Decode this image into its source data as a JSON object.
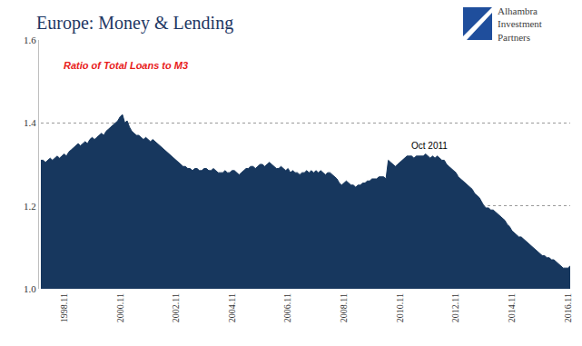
{
  "chart_data": {
    "type": "area",
    "title": "Europe: Money & Lending",
    "subtitle": "Ratio of Total Loans to M3",
    "annotations": [
      "Oct 2011"
    ],
    "logo": "Alhambra Investment Partners",
    "color": "#17375e",
    "grid": true,
    "ylim": [
      1.0,
      1.6
    ],
    "yticks": [
      {
        "value": 1.0,
        "label": "1.0"
      },
      1.2,
      1.4,
      1.6
    ],
    "categories": [
      null,
      null,
      null,
      null,
      null,
      null,
      null,
      null,
      null,
      null,
      "1998.11",
      null,
      null,
      null,
      null,
      null,
      null,
      null,
      null,
      null,
      null,
      null,
      null,
      null,
      null,
      null,
      null,
      null,
      null,
      null,
      null,
      null,
      null,
      null,
      "2000.11",
      null,
      null,
      null,
      null,
      null,
      null,
      null,
      null,
      null,
      null,
      null,
      null,
      null,
      null,
      null,
      null,
      null,
      null,
      null,
      null,
      null,
      null,
      null,
      "2002.11",
      null,
      null,
      null,
      null,
      null,
      null,
      null,
      null,
      null,
      null,
      null,
      null,
      null,
      null,
      null,
      null,
      null,
      null,
      null,
      null,
      null,
      null,
      null,
      "2004.11",
      null,
      null,
      null,
      null,
      null,
      null,
      null,
      null,
      null,
      null,
      null,
      null,
      null,
      null,
      null,
      null,
      null,
      null,
      null,
      null,
      null,
      null,
      null,
      "2006.11",
      null,
      null,
      null,
      null,
      null,
      null,
      null,
      null,
      null,
      null,
      null,
      null,
      null,
      null,
      null,
      null,
      null,
      null,
      null,
      null,
      null,
      null,
      null,
      "2008.11",
      null,
      null,
      null,
      null,
      null,
      null,
      null,
      null,
      null,
      null,
      null,
      null,
      null,
      null,
      null,
      null,
      null,
      null,
      null,
      null,
      null,
      null,
      null,
      "2010.11",
      null,
      null,
      null,
      null,
      null,
      null,
      null,
      null,
      null,
      null,
      null,
      null,
      null,
      null,
      null,
      null,
      null,
      null,
      null,
      null,
      null,
      null,
      null,
      "2012.11",
      null,
      null,
      null,
      null,
      null,
      null,
      null,
      null,
      null,
      null,
      null,
      null,
      null,
      null,
      null,
      null,
      null,
      null,
      null,
      null,
      null,
      null,
      null,
      "2014.11",
      null,
      null,
      null,
      null,
      null,
      null,
      null,
      null,
      null,
      null,
      null,
      null,
      null,
      null,
      null,
      null,
      null,
      null,
      null,
      null,
      null,
      null,
      null,
      "2016.11",
      null
    ],
    "values": [
      1.31,
      1.31,
      1.305,
      1.31,
      1.315,
      1.31,
      1.315,
      1.32,
      1.315,
      1.32,
      1.325,
      1.32,
      1.33,
      1.335,
      1.34,
      1.345,
      1.35,
      1.345,
      1.35,
      1.355,
      1.35,
      1.36,
      1.365,
      1.36,
      1.365,
      1.37,
      1.375,
      1.37,
      1.38,
      1.385,
      1.39,
      1.395,
      1.4,
      1.405,
      1.415,
      1.42,
      1.4,
      1.405,
      1.39,
      1.38,
      1.375,
      1.37,
      1.37,
      1.365,
      1.36,
      1.365,
      1.36,
      1.355,
      1.36,
      1.355,
      1.35,
      1.345,
      1.34,
      1.335,
      1.33,
      1.325,
      1.32,
      1.315,
      1.31,
      1.305,
      1.3,
      1.295,
      1.295,
      1.29,
      1.29,
      1.285,
      1.29,
      1.29,
      1.285,
      1.285,
      1.29,
      1.29,
      1.285,
      1.285,
      1.29,
      1.285,
      1.28,
      1.28,
      1.28,
      1.285,
      1.28,
      1.28,
      1.285,
      1.285,
      1.28,
      1.275,
      1.28,
      1.285,
      1.29,
      1.29,
      1.295,
      1.295,
      1.29,
      1.295,
      1.3,
      1.3,
      1.295,
      1.3,
      1.305,
      1.3,
      1.295,
      1.29,
      1.29,
      1.295,
      1.29,
      1.285,
      1.29,
      1.28,
      1.285,
      1.28,
      1.28,
      1.275,
      1.28,
      1.28,
      1.285,
      1.28,
      1.285,
      1.28,
      1.285,
      1.28,
      1.285,
      1.28,
      1.275,
      1.28,
      1.28,
      1.275,
      1.27,
      1.265,
      1.255,
      1.25,
      1.255,
      1.26,
      1.255,
      1.25,
      1.25,
      1.245,
      1.25,
      1.25,
      1.255,
      1.255,
      1.26,
      1.26,
      1.265,
      1.265,
      1.265,
      1.27,
      1.27,
      1.27,
      1.265,
      1.31,
      1.305,
      1.3,
      1.295,
      1.3,
      1.305,
      1.31,
      1.315,
      1.32,
      1.32,
      1.32,
      1.315,
      1.32,
      1.32,
      1.32,
      1.32,
      1.325,
      1.32,
      1.315,
      1.32,
      1.315,
      1.32,
      1.315,
      1.31,
      1.31,
      1.3,
      1.295,
      1.29,
      1.285,
      1.28,
      1.27,
      1.265,
      1.26,
      1.255,
      1.25,
      1.245,
      1.24,
      1.23,
      1.225,
      1.22,
      1.21,
      1.2,
      1.195,
      1.195,
      1.19,
      1.19,
      1.185,
      1.18,
      1.175,
      1.17,
      1.165,
      1.155,
      1.15,
      1.14,
      1.135,
      1.13,
      1.125,
      1.125,
      1.12,
      1.115,
      1.11,
      1.105,
      1.1,
      1.095,
      1.09,
      1.085,
      1.08,
      1.08,
      1.075,
      1.075,
      1.07,
      1.07,
      1.065,
      1.06,
      1.055,
      1.05,
      1.05,
      1.05,
      1.055
    ]
  }
}
